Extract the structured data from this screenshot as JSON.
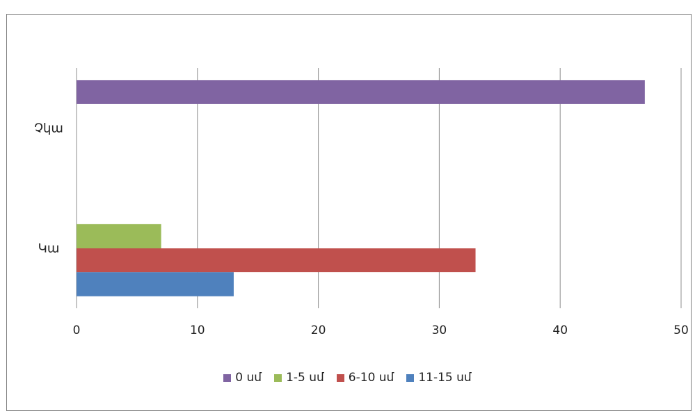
{
  "chart_data": {
    "type": "bar",
    "orientation": "horizontal",
    "title": "",
    "categories": [
      "Կա",
      "Չկա"
    ],
    "series": [
      {
        "name": "11-15 սմ",
        "values": [
          13,
          0
        ],
        "color": "#4f81bd"
      },
      {
        "name": "6-10 սմ",
        "values": [
          33,
          0
        ],
        "color": "#c0504d"
      },
      {
        "name": "1-5 սմ",
        "values": [
          7,
          0
        ],
        "color": "#9bbb59"
      },
      {
        "name": "0 սմ",
        "values": [
          0,
          47
        ],
        "color": "#8064a2"
      }
    ],
    "xlim": [
      0,
      50
    ],
    "x_ticks": [
      "0",
      "10",
      "20",
      "30",
      "40",
      "50"
    ],
    "legend_order": [
      "0 սմ",
      "1-5 սմ",
      "6-10 սմ",
      "11-15 սմ"
    ],
    "legend_position": "bottom",
    "grid": true,
    "xlabel": "",
    "ylabel": ""
  }
}
